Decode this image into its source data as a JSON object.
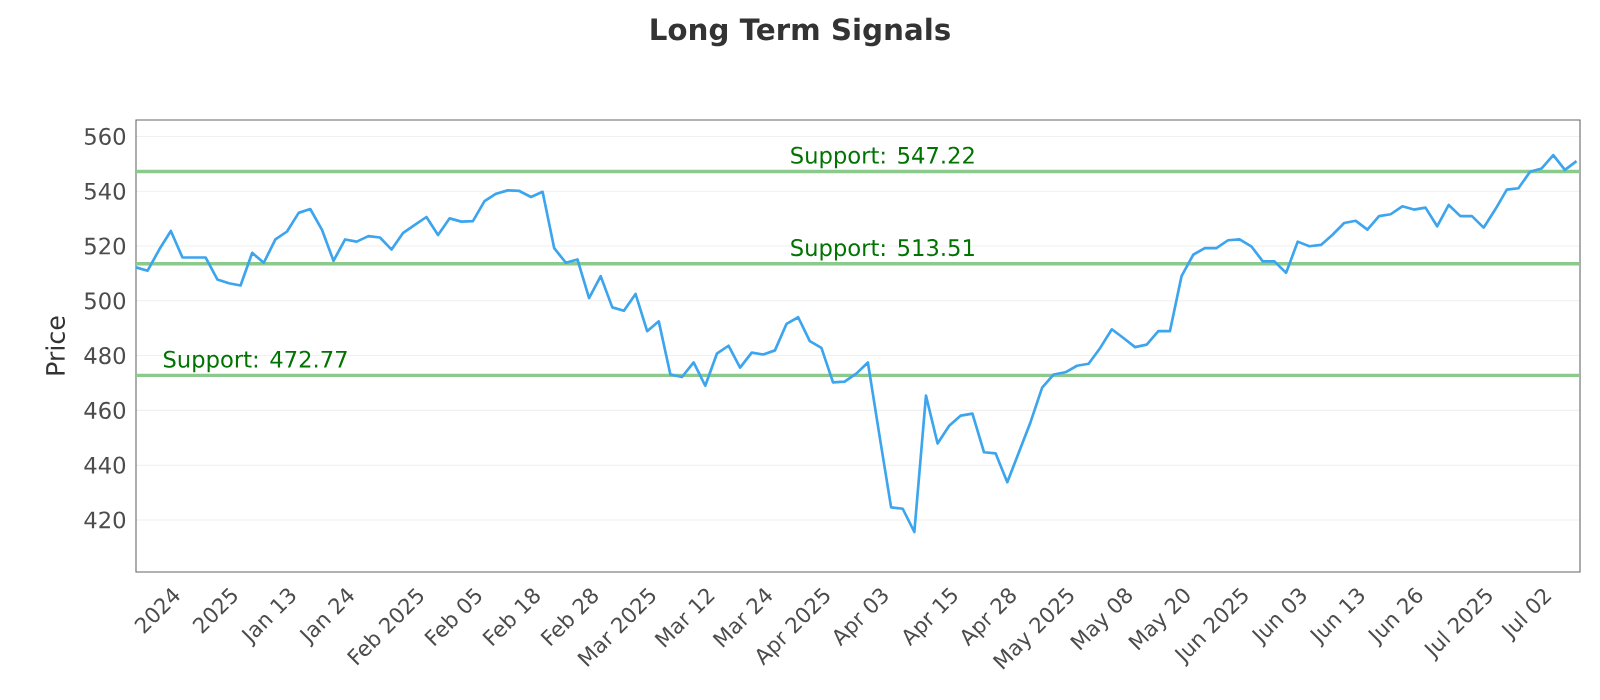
{
  "chart_data": {
    "type": "line",
    "title": "Long Term Signals",
    "ylabel": "Price",
    "categories": [
      null,
      null,
      null,
      "2024",
      null,
      null,
      null,
      null,
      "2025",
      null,
      null,
      null,
      null,
      "Jan 13",
      null,
      null,
      null,
      null,
      "Jan 24",
      null,
      null,
      null,
      null,
      null,
      "Feb 2025",
      null,
      null,
      null,
      null,
      "Feb 05",
      null,
      null,
      null,
      null,
      "Feb 18",
      null,
      null,
      null,
      null,
      "Feb 28",
      null,
      null,
      null,
      null,
      "Mar 2025",
      null,
      null,
      null,
      null,
      "Mar 12",
      null,
      null,
      null,
      null,
      "Mar 24",
      null,
      null,
      null,
      null,
      "Apr 2025",
      null,
      null,
      null,
      null,
      "Apr 03",
      null,
      null,
      null,
      null,
      null,
      "Apr 15",
      null,
      null,
      null,
      null,
      "Apr 28",
      null,
      null,
      null,
      null,
      "May 2025",
      null,
      null,
      null,
      null,
      "May 08",
      null,
      null,
      null,
      null,
      "May 20",
      null,
      null,
      null,
      null,
      "Jun 2025",
      null,
      null,
      null,
      null,
      "Jun 03",
      null,
      null,
      null,
      null,
      "Jun 13",
      null,
      null,
      null,
      null,
      "Jun 26",
      null,
      null,
      null,
      null,
      null,
      "Jul 2025",
      null,
      null,
      null,
      null,
      "Jul 02",
      null,
      null,
      null
    ],
    "series": [
      {
        "color": "#3da5ee",
        "values": [
          512.2,
          511.0,
          518.7,
          525.5,
          515.8,
          515.8,
          515.8,
          507.8,
          506.4,
          505.6,
          517.5,
          513.9,
          522.4,
          525.3,
          532.1,
          533.5,
          526.0,
          514.6,
          522.4,
          521.6,
          523.6,
          523.1,
          518.7,
          524.8,
          527.7,
          530.6,
          524.0,
          530.1,
          528.9,
          529.1,
          536.4,
          539.1,
          540.3,
          540.1,
          537.9,
          539.8,
          519.2,
          513.9,
          515.1,
          501.0,
          509.0,
          497.6,
          496.4,
          502.5,
          488.9,
          492.5,
          473.1,
          472.2,
          477.5,
          469.0,
          480.7,
          483.6,
          475.6,
          481.1,
          480.4,
          481.9,
          491.6,
          494.0,
          485.3,
          482.8,
          470.2,
          470.5,
          473.4,
          477.5,
          450.8,
          424.6,
          424.1,
          415.6,
          465.4,
          447.9,
          454.4,
          458.1,
          458.8,
          444.7,
          444.3,
          433.8,
          444.7,
          455.7,
          468.3,
          473.1,
          473.9,
          476.3,
          477.0,
          482.8,
          489.6,
          486.4,
          483.1,
          484.0,
          488.9,
          488.9,
          509.0,
          516.8,
          519.2,
          519.2,
          522.1,
          522.4,
          519.9,
          514.4,
          514.4,
          510.2,
          521.6,
          519.9,
          520.4,
          524.1,
          528.4,
          529.2,
          526.0,
          530.9,
          531.6,
          534.5,
          533.3,
          534.0,
          527.2,
          535.0,
          530.9,
          530.9,
          526.7,
          533.3,
          540.6,
          541.1,
          547.1,
          548.3,
          553.2,
          547.8,
          551.0
        ]
      }
    ],
    "ylim": [
      401,
      566
    ],
    "yticks": [
      420,
      440,
      460,
      480,
      500,
      520,
      540,
      560
    ],
    "grid": "y",
    "marker": "none",
    "line_style": "solid",
    "ref_lines": [
      {
        "axis": "y",
        "value": 547.22,
        "label": "Support: 547.22",
        "color": "#8cc98c"
      },
      {
        "axis": "y",
        "value": 513.51,
        "label": "Support: 513.51",
        "color": "#8cc98c"
      },
      {
        "axis": "y",
        "value": 472.77,
        "label": "Support: 472.77",
        "color": "#8cc98c"
      }
    ]
  }
}
